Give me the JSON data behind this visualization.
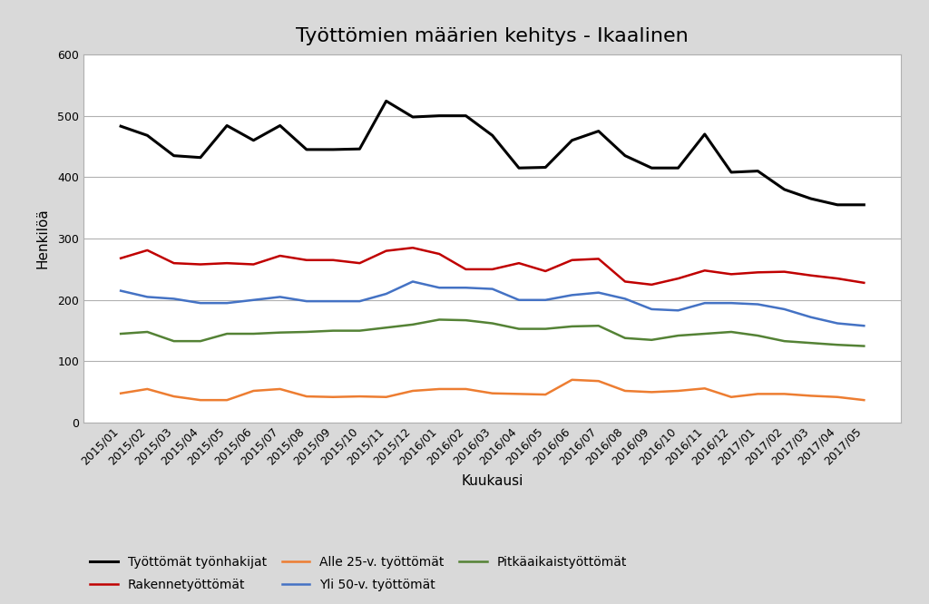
{
  "title": "Työttömien määrien kehitys - Ikaalinen",
  "xlabel": "Kuukausi",
  "ylabel": "Henkilöä",
  "background_color": "#d9d9d9",
  "plot_background": "#ffffff",
  "ylim": [
    0,
    600
  ],
  "yticks": [
    0,
    100,
    200,
    300,
    400,
    500,
    600
  ],
  "categories": [
    "2015/01",
    "2015/02",
    "2015/03",
    "2015/04",
    "2015/05",
    "2015/06",
    "2015/07",
    "2015/08",
    "2015/09",
    "2015/10",
    "2015/11",
    "2015/12",
    "2016/01",
    "2016/02",
    "2016/03",
    "2016/04",
    "2016/05",
    "2016/06",
    "2016/07",
    "2016/08",
    "2016/09",
    "2016/10",
    "2016/11",
    "2016/12",
    "2017/01",
    "2017/02",
    "2017/03",
    "2017/04",
    "2017/05"
  ],
  "series": {
    "Työttömät työnhakijat": {
      "color": "#000000",
      "linewidth": 2.2,
      "values": [
        483,
        468,
        435,
        432,
        484,
        460,
        484,
        445,
        445,
        446,
        524,
        498,
        500,
        500,
        468,
        415,
        416,
        460,
        475,
        435,
        415,
        415,
        470,
        408,
        410,
        380,
        365,
        355,
        355
      ]
    },
    "Rakennetyöttömät": {
      "color": "#c00000",
      "linewidth": 1.8,
      "values": [
        268,
        281,
        260,
        258,
        260,
        258,
        272,
        265,
        265,
        260,
        280,
        285,
        275,
        250,
        250,
        260,
        247,
        265,
        267,
        230,
        225,
        235,
        248,
        242,
        245,
        246,
        240,
        235,
        228
      ]
    },
    "Alle 25-v. työttömät": {
      "color": "#ed7d31",
      "linewidth": 1.8,
      "values": [
        48,
        55,
        43,
        37,
        37,
        52,
        55,
        43,
        42,
        43,
        42,
        52,
        55,
        55,
        48,
        47,
        46,
        70,
        68,
        52,
        50,
        52,
        56,
        42,
        47,
        47,
        44,
        42,
        37
      ]
    },
    "Yli 50-v. työttömät": {
      "color": "#4472c4",
      "linewidth": 1.8,
      "values": [
        215,
        205,
        202,
        195,
        195,
        200,
        205,
        198,
        198,
        198,
        210,
        230,
        220,
        220,
        218,
        200,
        200,
        208,
        212,
        202,
        185,
        183,
        195,
        195,
        193,
        185,
        172,
        162,
        158
      ]
    },
    "Pitkäaikaistyöttömät": {
      "color": "#548235",
      "linewidth": 1.8,
      "values": [
        145,
        148,
        133,
        133,
        145,
        145,
        147,
        148,
        150,
        150,
        155,
        160,
        168,
        167,
        162,
        153,
        153,
        157,
        158,
        138,
        135,
        142,
        145,
        148,
        142,
        133,
        130,
        127,
        125
      ]
    }
  },
  "legend_order": [
    "Työttömät työnhakijat",
    "Rakennetyöttömät",
    "Alle 25-v. työttömät",
    "Yli 50-v. työttömät",
    "Pitkäaikaistyöttömät"
  ],
  "title_fontsize": 16,
  "axis_label_fontsize": 11,
  "tick_fontsize": 9,
  "legend_fontsize": 10
}
